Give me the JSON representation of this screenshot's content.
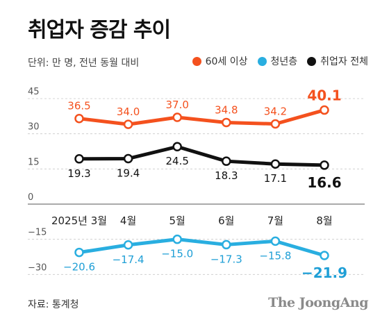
{
  "header": {
    "title": "취업자 증감 추이",
    "unit_note": "단위: 만 명, 전년 동월 대비"
  },
  "legend": [
    {
      "label": "60세 이상",
      "color": "#f4511e"
    },
    {
      "label": "청년층",
      "color": "#29aee0"
    },
    {
      "label": "취업자 전체",
      "color": "#111111"
    }
  ],
  "chart_data": {
    "type": "line",
    "title": "취업자 증감 추이",
    "xlabel": "",
    "ylabel": "",
    "categories": [
      "2025년 3월",
      "4월",
      "5월",
      "6월",
      "7월",
      "8월"
    ],
    "y_ticks": [
      45,
      30,
      15,
      0,
      -15,
      -30
    ],
    "y_tick_labels": [
      "45",
      "30",
      "15",
      "0",
      "−15",
      "−30"
    ],
    "ylim": [
      -30,
      45
    ],
    "grid": true,
    "legend_position": "top-right",
    "series": [
      {
        "name": "60세 이상",
        "color": "#f4511e",
        "values": [
          36.5,
          34.0,
          37.0,
          34.8,
          34.2,
          40.1
        ],
        "labels": [
          "36.5",
          "34.0",
          "37.0",
          "34.8",
          "34.2",
          "40.1"
        ],
        "label_pos": "above"
      },
      {
        "name": "취업자 전체",
        "color": "#111111",
        "values": [
          19.3,
          19.4,
          24.5,
          18.3,
          17.1,
          16.6
        ],
        "labels": [
          "19.3",
          "19.4",
          "24.5",
          "18.3",
          "17.1",
          "16.6"
        ],
        "label_pos": "below"
      },
      {
        "name": "청년층",
        "color": "#29aee0",
        "values": [
          -20.6,
          -17.4,
          -15.0,
          -17.3,
          -15.8,
          -21.9
        ],
        "labels": [
          "−20.6",
          "−17.4",
          "−15.0",
          "−17.3",
          "−15.8",
          "−21.9"
        ],
        "label_pos": "below"
      }
    ]
  },
  "footer": {
    "source": "자료: 통계청",
    "logo": "The JoongAng"
  }
}
